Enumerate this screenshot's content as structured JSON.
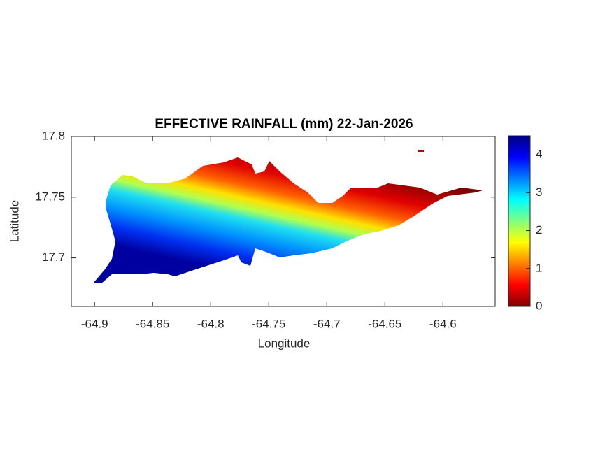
{
  "chart_data": {
    "type": "map",
    "title": "EFFECTIVE RAINFALL (mm) 22-Jan-2026",
    "x_label": "Longitude",
    "y_label": "Latitude",
    "xlim": [
      -64.92,
      -64.555
    ],
    "xticks": [
      -64.9,
      -64.85,
      -64.8,
      -64.75,
      -64.7,
      -64.65,
      -64.6
    ],
    "ylim": [
      17.66,
      17.8
    ],
    "yticks": [
      17.7,
      17.75,
      17.8
    ],
    "colorbar": {
      "lim": [
        0,
        4.5
      ],
      "ticks": [
        0,
        1,
        2,
        3,
        4
      ]
    }
  }
}
